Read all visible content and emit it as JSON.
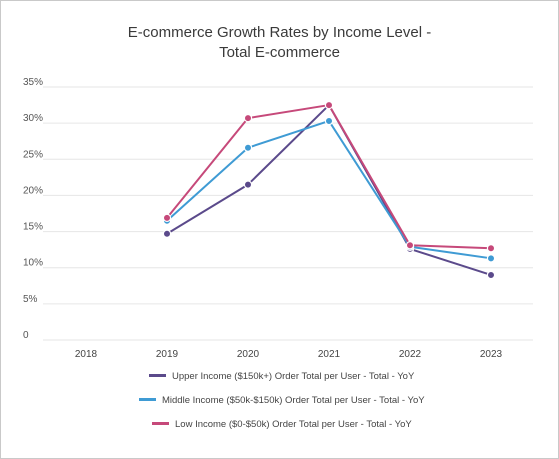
{
  "title_line1": "E-commerce Growth Rates by Income Level -",
  "title_line2": "Total E-commerce",
  "chart_data": {
    "type": "line",
    "title": "E-commerce Growth Rates by Income Level - Total E-commerce",
    "xlabel": "",
    "ylabel": "",
    "categories": [
      "2018",
      "2019",
      "2020",
      "2021",
      "2022",
      "2023"
    ],
    "y_ticks": [
      "0",
      "5%",
      "10%",
      "15%",
      "20%",
      "25%",
      "30%",
      "35%"
    ],
    "ylim": [
      0,
      35
    ],
    "grid": true,
    "legend_position": "bottom",
    "series": [
      {
        "name": "Upper Income ($150k+) Order Total per User - Total - YoY",
        "color": "#5b4a8b",
        "values": [
          null,
          14.7,
          21.5,
          32.5,
          12.6,
          9.0
        ]
      },
      {
        "name": "Middle Income ($50k-$150k) Order Total per User - Total - YoY",
        "color": "#3f9bd4",
        "values": [
          null,
          16.5,
          26.6,
          30.3,
          12.9,
          11.3
        ]
      },
      {
        "name": "Low Income ($0-$50k) Order Total per User - Total - YoY",
        "color": "#c6497a",
        "values": [
          null,
          16.9,
          30.7,
          32.5,
          13.1,
          12.7
        ]
      }
    ]
  }
}
